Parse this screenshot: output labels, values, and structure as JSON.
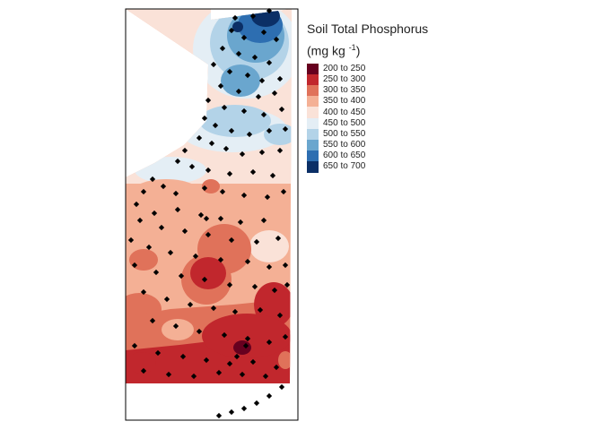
{
  "map": {
    "colors": {
      "frame": "#000000",
      "points": "#000000",
      "background": "#ffffff"
    }
  },
  "legend": {
    "title_line1": "Soil Total Phosphorus",
    "title_line2_prefix": "(mg kg ",
    "title_line2_sup": "-1",
    "title_line2_suffix": ")",
    "classes": [
      {
        "label": "200 to 250",
        "color": "#67001f"
      },
      {
        "label": "250 to 300",
        "color": "#c1272d"
      },
      {
        "label": "300 to 350",
        "color": "#e0725a"
      },
      {
        "label": "350 to 400",
        "color": "#f4b095"
      },
      {
        "label": "400 to 450",
        "color": "#fae2d8"
      },
      {
        "label": "450 to 500",
        "color": "#e4eef5"
      },
      {
        "label": "500 to 550",
        "color": "#b3d3e8"
      },
      {
        "label": "550 to 600",
        "color": "#6aa6ce"
      },
      {
        "label": "600 to 650",
        "color": "#2d6eb1"
      },
      {
        "label": "650 to 700",
        "color": "#0b2f66"
      }
    ]
  }
}
